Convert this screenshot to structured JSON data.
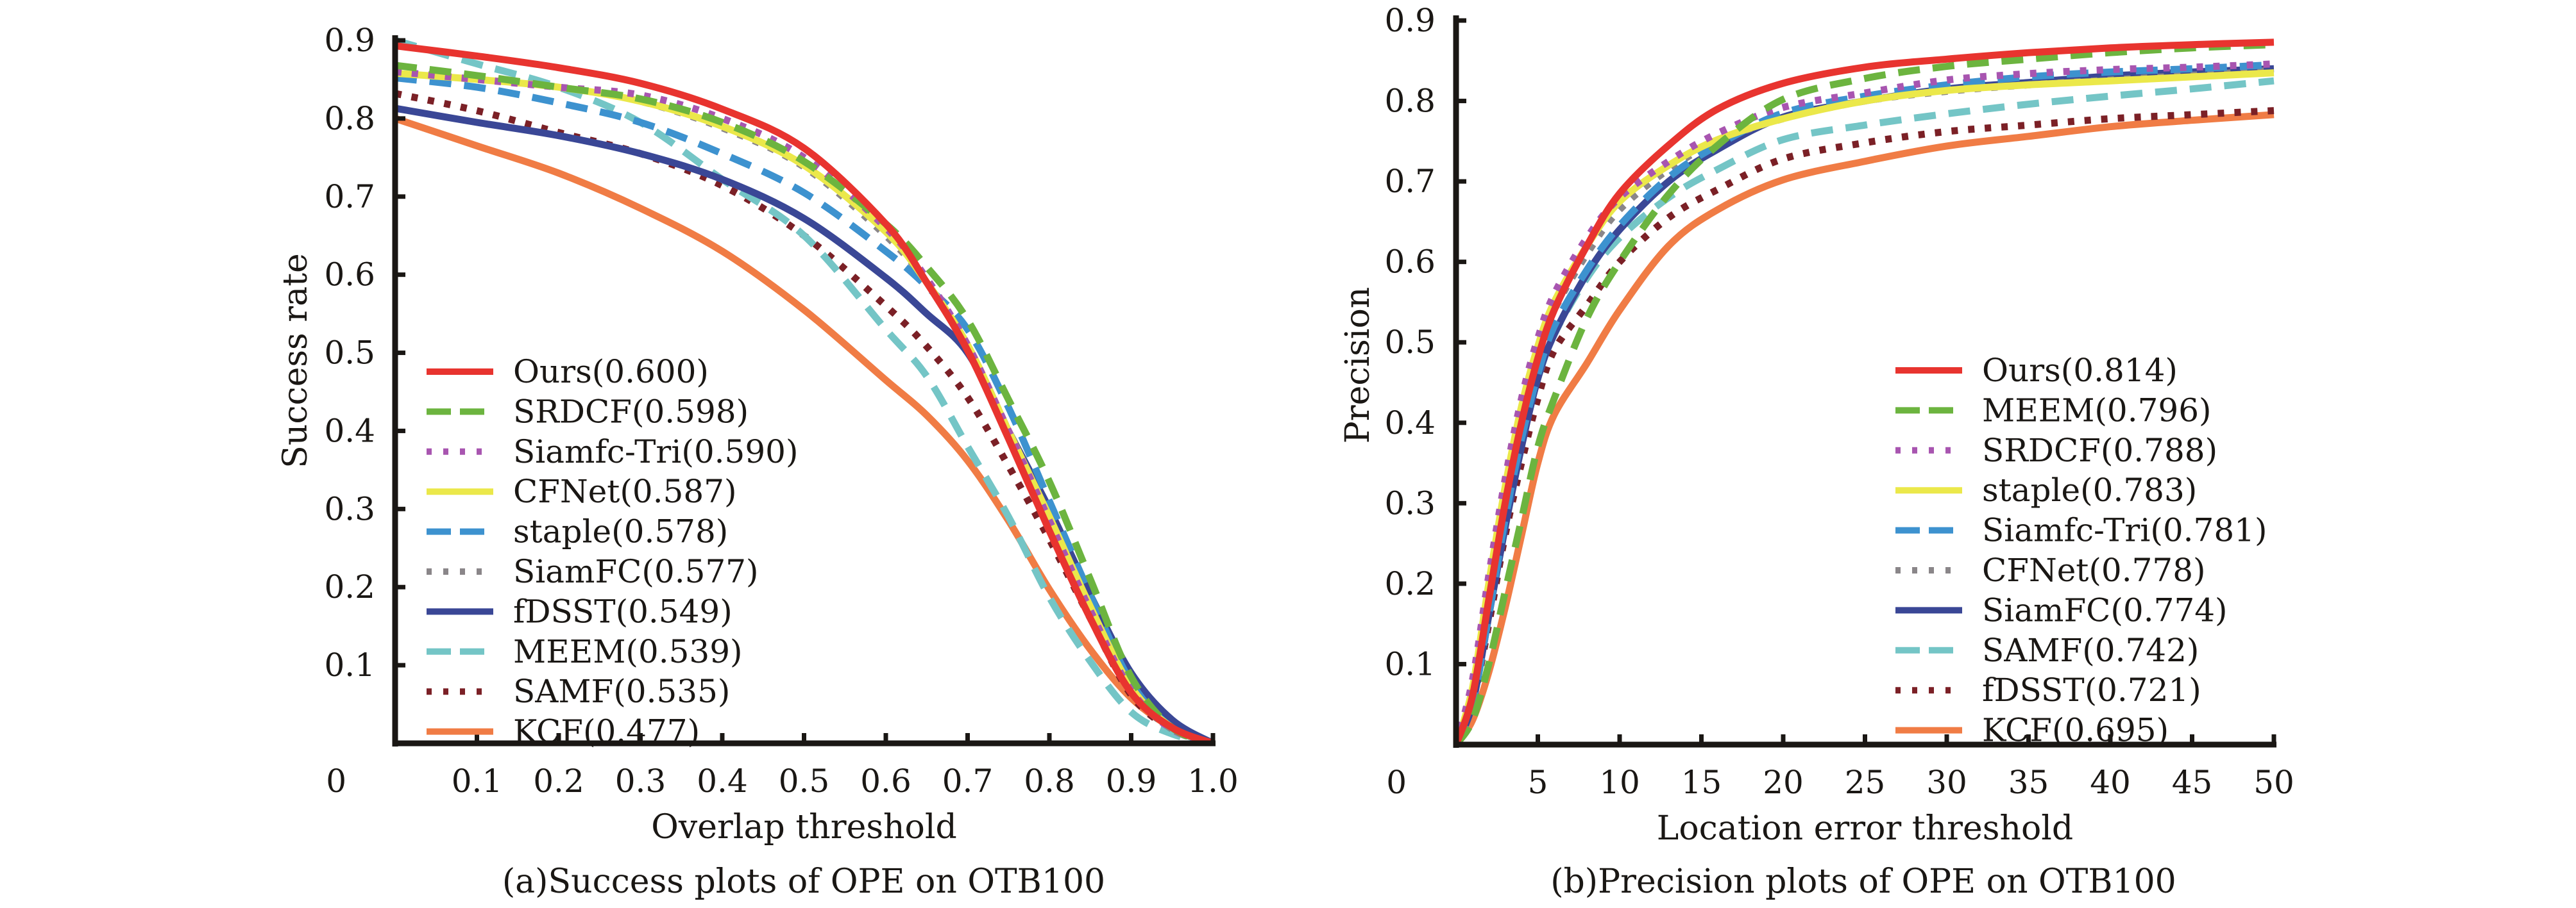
{
  "figure": {
    "panels": [
      "success",
      "precision"
    ]
  },
  "chart_data": [
    {
      "id": "success",
      "type": "line",
      "title": "",
      "caption": "(a)Success plots of OPE on OTB100",
      "xlabel": "Overlap threshold",
      "ylabel": "Success rate",
      "xlim": [
        0,
        1.0
      ],
      "ylim": [
        0,
        0.9
      ],
      "origin_label": "0",
      "xticks": [
        0.1,
        0.2,
        0.3,
        0.4,
        0.5,
        0.6,
        0.7,
        0.8,
        0.9,
        1.0
      ],
      "xtick_labels": [
        "0.1",
        "0.2",
        "0.3",
        "0.4",
        "0.5",
        "0.6",
        "0.7",
        "0.8",
        "0.9",
        "1.0"
      ],
      "yticks": [
        0.1,
        0.2,
        0.3,
        0.4,
        0.5,
        0.6,
        0.7,
        0.8,
        0.9
      ],
      "ytick_labels": [
        "0.1",
        "0.2",
        "0.3",
        "0.4",
        "0.5",
        "0.6",
        "0.7",
        "0.8",
        "0.9"
      ],
      "grid": false,
      "legend_position": "bottom-left",
      "x": [
        0,
        0.1,
        0.2,
        0.3,
        0.4,
        0.5,
        0.6,
        0.65,
        0.7,
        0.75,
        0.8,
        0.85,
        0.9,
        0.95,
        1.0
      ],
      "series": [
        {
          "name": "Ours",
          "score": "0.600",
          "legend": "Ours(0.600)",
          "color": "#e8342f",
          "style": "solid",
          "values": [
            0.893,
            0.88,
            0.865,
            0.845,
            0.812,
            0.762,
            0.665,
            0.59,
            0.503,
            0.39,
            0.272,
            0.16,
            0.065,
            0.02,
            0.0
          ]
        },
        {
          "name": "SRDCF",
          "score": "0.598",
          "legend": "SRDCF(0.598)",
          "color": "#6cb43f",
          "style": "dashed",
          "values": [
            0.868,
            0.855,
            0.84,
            0.825,
            0.795,
            0.745,
            0.665,
            0.61,
            0.542,
            0.44,
            0.335,
            0.21,
            0.085,
            0.02,
            0.0
          ]
        },
        {
          "name": "Siamfc-Tri",
          "score": "0.590",
          "legend": "Siamfc-Tri(0.590)",
          "color": "#a855b0",
          "style": "dotted",
          "values": [
            0.86,
            0.85,
            0.84,
            0.83,
            0.8,
            0.75,
            0.66,
            0.595,
            0.51,
            0.4,
            0.285,
            0.17,
            0.068,
            0.018,
            0.0
          ]
        },
        {
          "name": "CFNet",
          "score": "0.587",
          "legend": "CFNet(0.587)",
          "color": "#ebe84a",
          "style": "solid",
          "values": [
            0.858,
            0.85,
            0.84,
            0.822,
            0.79,
            0.74,
            0.655,
            0.59,
            0.51,
            0.4,
            0.29,
            0.175,
            0.072,
            0.02,
            0.0
          ]
        },
        {
          "name": "staple",
          "score": "0.578",
          "legend": "staple(0.578)",
          "color": "#3d92cf",
          "style": "dashed",
          "values": [
            0.852,
            0.84,
            0.82,
            0.795,
            0.755,
            0.705,
            0.63,
            0.585,
            0.53,
            0.43,
            0.31,
            0.19,
            0.078,
            0.02,
            0.0
          ]
        },
        {
          "name": "SiamFC",
          "score": "0.577",
          "legend": "SiamFC(0.577)",
          "color": "#8a8689",
          "style": "dotted",
          "values": [
            0.858,
            0.85,
            0.84,
            0.822,
            0.788,
            0.738,
            0.65,
            0.59,
            0.508,
            0.4,
            0.285,
            0.17,
            0.068,
            0.018,
            0.0
          ]
        },
        {
          "name": "fDSST",
          "score": "0.549",
          "legend": "fDSST(0.549)",
          "color": "#3a4796",
          "style": "solid",
          "values": [
            0.813,
            0.795,
            0.778,
            0.755,
            0.722,
            0.672,
            0.596,
            0.55,
            0.5,
            0.4,
            0.3,
            0.19,
            0.09,
            0.03,
            0.0
          ]
        },
        {
          "name": "MEEM",
          "score": "0.539",
          "legend": "MEEM(0.539)",
          "color": "#74c5c6",
          "style": "dashed",
          "values": [
            0.9,
            0.87,
            0.84,
            0.795,
            0.722,
            0.65,
            0.53,
            0.47,
            0.38,
            0.29,
            0.187,
            0.105,
            0.04,
            0.012,
            0.0
          ]
        },
        {
          "name": "SAMF",
          "score": "0.535",
          "legend": "SAMF(0.535)",
          "color": "#7b2026",
          "style": "dotted",
          "values": [
            0.832,
            0.81,
            0.782,
            0.755,
            0.714,
            0.65,
            0.56,
            0.508,
            0.443,
            0.355,
            0.261,
            0.16,
            0.062,
            0.018,
            0.0
          ]
        },
        {
          "name": "KCF",
          "score": "0.477",
          "legend": "KCF(0.477)",
          "color": "#f07c45",
          "style": "solid",
          "values": [
            0.8,
            0.765,
            0.73,
            0.685,
            0.63,
            0.555,
            0.465,
            0.42,
            0.362,
            0.285,
            0.197,
            0.12,
            0.058,
            0.02,
            0.0
          ]
        }
      ]
    },
    {
      "id": "precision",
      "type": "line",
      "title": "",
      "caption": "(b)Precision plots of OPE on OTB100",
      "xlabel": "Location error threshold",
      "ylabel": "Precision",
      "xlim": [
        0,
        50
      ],
      "ylim": [
        0,
        0.9
      ],
      "origin_label": "0",
      "xticks": [
        5,
        10,
        15,
        20,
        25,
        30,
        35,
        40,
        45,
        50
      ],
      "xtick_labels": [
        "5",
        "10",
        "15",
        "20",
        "25",
        "30",
        "35",
        "40",
        "45",
        "50"
      ],
      "yticks": [
        0.1,
        0.2,
        0.3,
        0.4,
        0.5,
        0.6,
        0.7,
        0.8,
        0.9
      ],
      "ytick_labels": [
        "0.1",
        "0.2",
        "0.3",
        "0.4",
        "0.5",
        "0.6",
        "0.7",
        "0.8",
        "0.9"
      ],
      "grid": false,
      "legend_position": "bottom-right",
      "x": [
        0,
        1,
        2,
        3,
        4,
        5,
        6,
        8,
        10,
        13,
        16,
        20,
        25,
        30,
        35,
        40,
        45,
        50
      ],
      "series": [
        {
          "name": "Ours",
          "score": "0.814",
          "legend": "Ours(0.814)",
          "color": "#e8342f",
          "style": "solid",
          "values": [
            0.0,
            0.06,
            0.18,
            0.3,
            0.4,
            0.48,
            0.54,
            0.62,
            0.685,
            0.745,
            0.79,
            0.822,
            0.842,
            0.852,
            0.86,
            0.866,
            0.87,
            0.873
          ]
        },
        {
          "name": "MEEM",
          "score": "0.796",
          "legend": "MEEM(0.796)",
          "color": "#6cb43f",
          "style": "dashed",
          "values": [
            0.0,
            0.03,
            0.1,
            0.19,
            0.28,
            0.37,
            0.43,
            0.53,
            0.6,
            0.684,
            0.745,
            0.802,
            0.828,
            0.843,
            0.852,
            0.86,
            0.866,
            0.87
          ]
        },
        {
          "name": "SRDCF",
          "score": "0.788",
          "legend": "SRDCF(0.788)",
          "color": "#a855b0",
          "style": "dotted",
          "values": [
            0.0,
            0.08,
            0.21,
            0.33,
            0.43,
            0.505,
            0.56,
            0.63,
            0.68,
            0.725,
            0.76,
            0.792,
            0.81,
            0.826,
            0.834,
            0.839,
            0.842,
            0.846
          ]
        },
        {
          "name": "staple",
          "score": "0.783",
          "legend": "staple(0.783)",
          "color": "#ebe84a",
          "style": "solid",
          "values": [
            0.0,
            0.07,
            0.2,
            0.32,
            0.42,
            0.495,
            0.55,
            0.62,
            0.675,
            0.72,
            0.752,
            0.778,
            0.8,
            0.813,
            0.82,
            0.825,
            0.83,
            0.835
          ]
        },
        {
          "name": "Siamfc-Tri",
          "score": "0.781",
          "legend": "Siamfc-Tri(0.781)",
          "color": "#3d92cf",
          "style": "dashed",
          "values": [
            0.0,
            0.05,
            0.16,
            0.28,
            0.38,
            0.46,
            0.52,
            0.59,
            0.645,
            0.705,
            0.745,
            0.785,
            0.806,
            0.82,
            0.83,
            0.836,
            0.84,
            0.845
          ]
        },
        {
          "name": "CFNet",
          "score": "0.778",
          "legend": "CFNet(0.778)",
          "color": "#8a8689",
          "style": "dotted",
          "values": [
            0.0,
            0.07,
            0.19,
            0.31,
            0.41,
            0.485,
            0.54,
            0.61,
            0.665,
            0.715,
            0.75,
            0.778,
            0.8,
            0.812,
            0.82,
            0.826,
            0.832,
            0.838
          ]
        },
        {
          "name": "SiamFC",
          "score": "0.774",
          "legend": "SiamFC(0.774)",
          "color": "#3a4796",
          "style": "solid",
          "values": [
            0.0,
            0.05,
            0.16,
            0.27,
            0.37,
            0.455,
            0.51,
            0.585,
            0.64,
            0.7,
            0.74,
            0.78,
            0.8,
            0.815,
            0.823,
            0.831,
            0.836,
            0.84
          ]
        },
        {
          "name": "SAMF",
          "score": "0.742",
          "legend": "SAMF(0.742)",
          "color": "#74c5c6",
          "style": "dashed",
          "values": [
            0.0,
            0.05,
            0.16,
            0.28,
            0.38,
            0.455,
            0.51,
            0.58,
            0.63,
            0.68,
            0.715,
            0.752,
            0.77,
            0.784,
            0.796,
            0.806,
            0.815,
            0.825
          ]
        },
        {
          "name": "fDSST",
          "score": "0.721",
          "legend": "fDSST(0.721)",
          "color": "#7b2026",
          "style": "dotted",
          "values": [
            0.0,
            0.05,
            0.15,
            0.26,
            0.35,
            0.43,
            0.49,
            0.546,
            0.6,
            0.655,
            0.69,
            0.728,
            0.748,
            0.762,
            0.77,
            0.778,
            0.783,
            0.788
          ]
        },
        {
          "name": "KCF",
          "score": "0.695",
          "legend": "KCF(0.695)",
          "color": "#f07c45",
          "style": "solid",
          "values": [
            0.0,
            0.03,
            0.09,
            0.17,
            0.26,
            0.35,
            0.41,
            0.474,
            0.54,
            0.62,
            0.665,
            0.702,
            0.725,
            0.744,
            0.756,
            0.768,
            0.776,
            0.783
          ]
        }
      ]
    }
  ]
}
